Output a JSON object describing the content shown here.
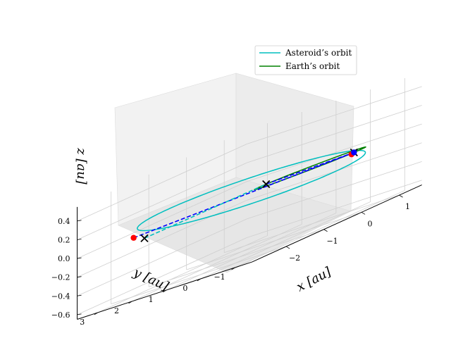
{
  "chart_data": {
    "type": "line",
    "title": "",
    "xlabel": "$x$ [au]",
    "ylabel": "$y$ [au]",
    "zlabel": "$z$ [au]",
    "x_ticks": [
      "−2",
      "−1",
      "0",
      "1"
    ],
    "y_ticks": [
      "−1",
      "0",
      "1",
      "2",
      "3"
    ],
    "z_ticks": [
      "−0.6",
      "−0.4",
      "−0.2",
      "0.0",
      "0.2",
      "0.4"
    ],
    "xlim": [
      -2.9,
      1.6
    ],
    "ylim": [
      -1.5,
      3.6
    ],
    "zlim": [
      -0.65,
      0.55
    ],
    "grid": true,
    "legend_position": "top-right",
    "series": [
      {
        "name": "Asteroid’s orbit",
        "color": "#00BFBF",
        "kind": "orbit",
        "center": [
          -0.62,
          1.03,
          0.0
        ],
        "semi_axes": [
          2.0,
          2.25
        ],
        "inclination_tilt": 0.12
      },
      {
        "name": "Earth’s orbit",
        "color": "#008000",
        "kind": "orbit",
        "center": [
          0.0,
          0.0,
          0.0
        ],
        "semi_axes": [
          1.0,
          1.0
        ],
        "inclination_tilt": 0.0
      }
    ],
    "transfer_lines": [
      {
        "color": "#0000FF",
        "style": "dashed",
        "points": [
          [
            -2.45,
            2.45,
            0.0
          ],
          [
            0.3,
            -0.95,
            0.0
          ]
        ]
      },
      {
        "color": "#0000FF",
        "style": "dashed",
        "points": [
          [
            -0.3,
            0.95,
            0.0
          ],
          [
            0.3,
            -0.95,
            0.0
          ]
        ]
      },
      {
        "color": "#00BFBF",
        "style": "dashed",
        "points": [
          [
            -2.3,
            2.3,
            -0.05
          ],
          [
            -0.3,
            0.95,
            0.0
          ]
        ]
      }
    ],
    "markers": [
      {
        "shape": "x",
        "color": "#000000",
        "point": [
          -2.3,
          2.3,
          -0.05
        ]
      },
      {
        "shape": "x",
        "color": "#000000",
        "point": [
          -0.3,
          0.95,
          0.0
        ]
      },
      {
        "shape": "x",
        "color": "#000000",
        "point": [
          0.3,
          -0.95,
          0.0
        ]
      },
      {
        "shape": "dot",
        "color": "#FF0000",
        "point": [
          -2.45,
          2.45,
          0.0
        ]
      },
      {
        "shape": "dot",
        "color": "#FF0000",
        "point": [
          0.28,
          -0.9,
          -0.01
        ]
      },
      {
        "shape": "dot",
        "color": "#0000FF",
        "point": [
          0.3,
          -0.95,
          0.0
        ]
      }
    ]
  }
}
